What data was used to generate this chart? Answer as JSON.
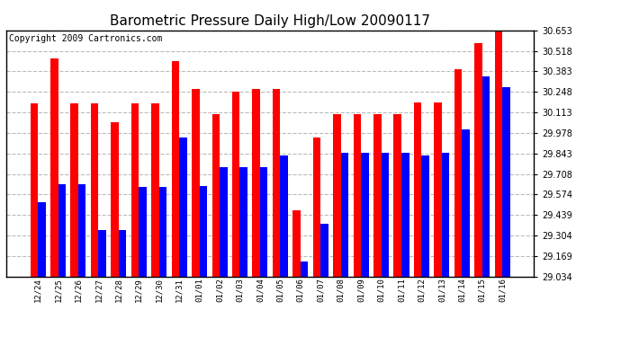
{
  "title": "Barometric Pressure Daily High/Low 20090117",
  "copyright": "Copyright 2009 Cartronics.com",
  "dates": [
    "12/24",
    "12/25",
    "12/26",
    "12/27",
    "12/28",
    "12/29",
    "12/30",
    "12/31",
    "01/01",
    "01/02",
    "01/03",
    "01/04",
    "01/05",
    "01/06",
    "01/07",
    "01/08",
    "01/09",
    "01/10",
    "01/11",
    "01/12",
    "01/13",
    "01/14",
    "01/15",
    "01/16"
  ],
  "highs": [
    30.17,
    30.47,
    30.17,
    30.17,
    30.05,
    30.17,
    30.17,
    30.45,
    30.27,
    30.1,
    30.25,
    30.27,
    30.27,
    29.47,
    29.95,
    30.1,
    30.1,
    30.1,
    30.1,
    30.18,
    30.18,
    30.4,
    30.57,
    30.65
  ],
  "lows": [
    29.52,
    29.64,
    29.64,
    29.34,
    29.34,
    29.62,
    29.62,
    29.95,
    29.63,
    29.75,
    29.75,
    29.75,
    29.83,
    29.13,
    29.38,
    29.85,
    29.85,
    29.85,
    29.85,
    29.83,
    29.85,
    30.0,
    30.35,
    30.28
  ],
  "ymin": 29.034,
  "ymax": 30.653,
  "yticks": [
    29.034,
    29.169,
    29.304,
    29.439,
    29.574,
    29.708,
    29.843,
    29.978,
    30.113,
    30.248,
    30.383,
    30.518,
    30.653
  ],
  "bar_width": 0.38,
  "high_color": "#ff0000",
  "low_color": "#0000ff",
  "bg_color": "#ffffff",
  "grid_color": "#bbbbbb",
  "title_fontsize": 11,
  "copyright_fontsize": 7,
  "tick_fontsize": 7,
  "xtick_fontsize": 6.5
}
